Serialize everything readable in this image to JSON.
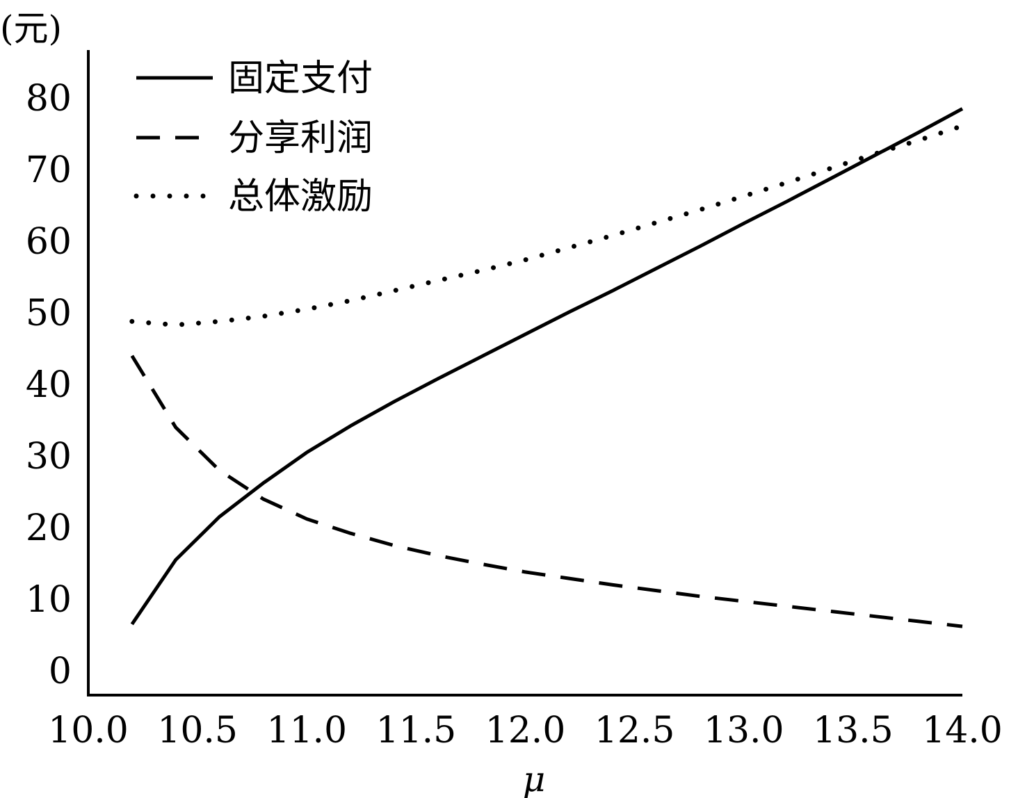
{
  "chart_data": {
    "type": "line",
    "title": "",
    "xlabel": "μ",
    "ylabel": "(元)",
    "xlim": [
      10.0,
      14.0
    ],
    "ylim": [
      0,
      87
    ],
    "x_ticks": [
      "10.0",
      "10.5",
      "11.0",
      "11.5",
      "12.0",
      "12.5",
      "13.0",
      "13.5",
      "14.0"
    ],
    "y_ticks": [
      "0",
      "10",
      "20",
      "30",
      "40",
      "50",
      "60",
      "70",
      "80"
    ],
    "grid": false,
    "legend_position": "top-left",
    "x": [
      10.2,
      10.4,
      10.6,
      10.8,
      11.0,
      11.2,
      11.4,
      11.6,
      11.8,
      12.0,
      12.2,
      12.4,
      12.6,
      12.8,
      13.0,
      13.2,
      13.4,
      13.6,
      13.8,
      14.0
    ],
    "series": [
      {
        "name": "固定支付",
        "style": "solid",
        "values": [
          6.5,
          15.5,
          21.5,
          26.2,
          30.5,
          34.2,
          37.6,
          40.8,
          43.9,
          47.0,
          50.1,
          53.1,
          56.2,
          59.3,
          62.5,
          65.6,
          68.8,
          72.0,
          75.2,
          78.5
        ]
      },
      {
        "name": "分享利润",
        "style": "dashed",
        "values": [
          44.0,
          34.0,
          28.0,
          24.0,
          21.2,
          19.2,
          17.5,
          16.1,
          14.9,
          13.8,
          12.9,
          12.0,
          11.2,
          10.4,
          9.7,
          9.0,
          8.3,
          7.6,
          6.9,
          6.2
        ]
      },
      {
        "name": "总体激励",
        "style": "dotted",
        "values": [
          48.8,
          48.3,
          48.8,
          49.5,
          50.5,
          51.7,
          53.1,
          54.5,
          55.9,
          57.4,
          59.1,
          60.8,
          62.6,
          64.4,
          66.3,
          68.2,
          70.2,
          72.2,
          74.1,
          76.1
        ]
      }
    ]
  }
}
